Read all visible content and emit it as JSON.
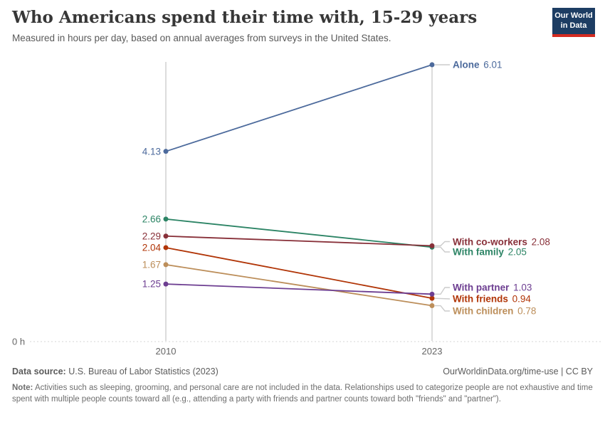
{
  "header": {
    "title": "Who Americans spend their time with, 15-29 years",
    "subtitle": "Measured in hours per day, based on annual averages from surveys in the United States.",
    "logo": {
      "line1": "Our World",
      "line2": "in Data",
      "bg_color": "#1d3d63",
      "stripe_color": "#d42b21"
    }
  },
  "chart_data": {
    "type": "line",
    "variant": "slope",
    "title": "Who Americans spend their time with, 15-29 years",
    "x": [
      "2010",
      "2023"
    ],
    "ylim": [
      0,
      6.01
    ],
    "y_zero_label": "0 h",
    "ylabel": "hours per day",
    "grid": "dotted zero baseline only",
    "legend_position": "inline labels right of 2023 axis, values also labeled left of 2010 axis",
    "series": [
      {
        "name": "Alone",
        "color": "#4C6A9C",
        "values": [
          4.13,
          6.01
        ]
      },
      {
        "name": "With family",
        "color": "#2C8465",
        "values": [
          2.66,
          2.05
        ]
      },
      {
        "name": "With co-workers",
        "color": "#883039",
        "values": [
          2.29,
          2.08
        ]
      },
      {
        "name": "With children",
        "color": "#BC8E5A",
        "values": [
          1.67,
          0.78
        ]
      },
      {
        "name": "With friends",
        "color": "#B13507",
        "values": [
          2.04,
          0.94
        ]
      },
      {
        "name": "With partner",
        "color": "#6D3E91",
        "values": [
          1.25,
          1.03
        ]
      }
    ]
  },
  "footer": {
    "datasource_label": "Data source:",
    "datasource_value": " U.S. Bureau of Labor Statistics (2023)",
    "link": "OurWorldinData.org/time-use | CC BY",
    "note_label": "Note:",
    "note_text": " Activities such as sleeping, grooming, and personal care are not included in the data. Relationships used to categorize people are not exhaustive and time spent with multiple people counts toward all (e.g., attending a party with friends and partner counts toward both \"friends\" and \"partner\")."
  }
}
